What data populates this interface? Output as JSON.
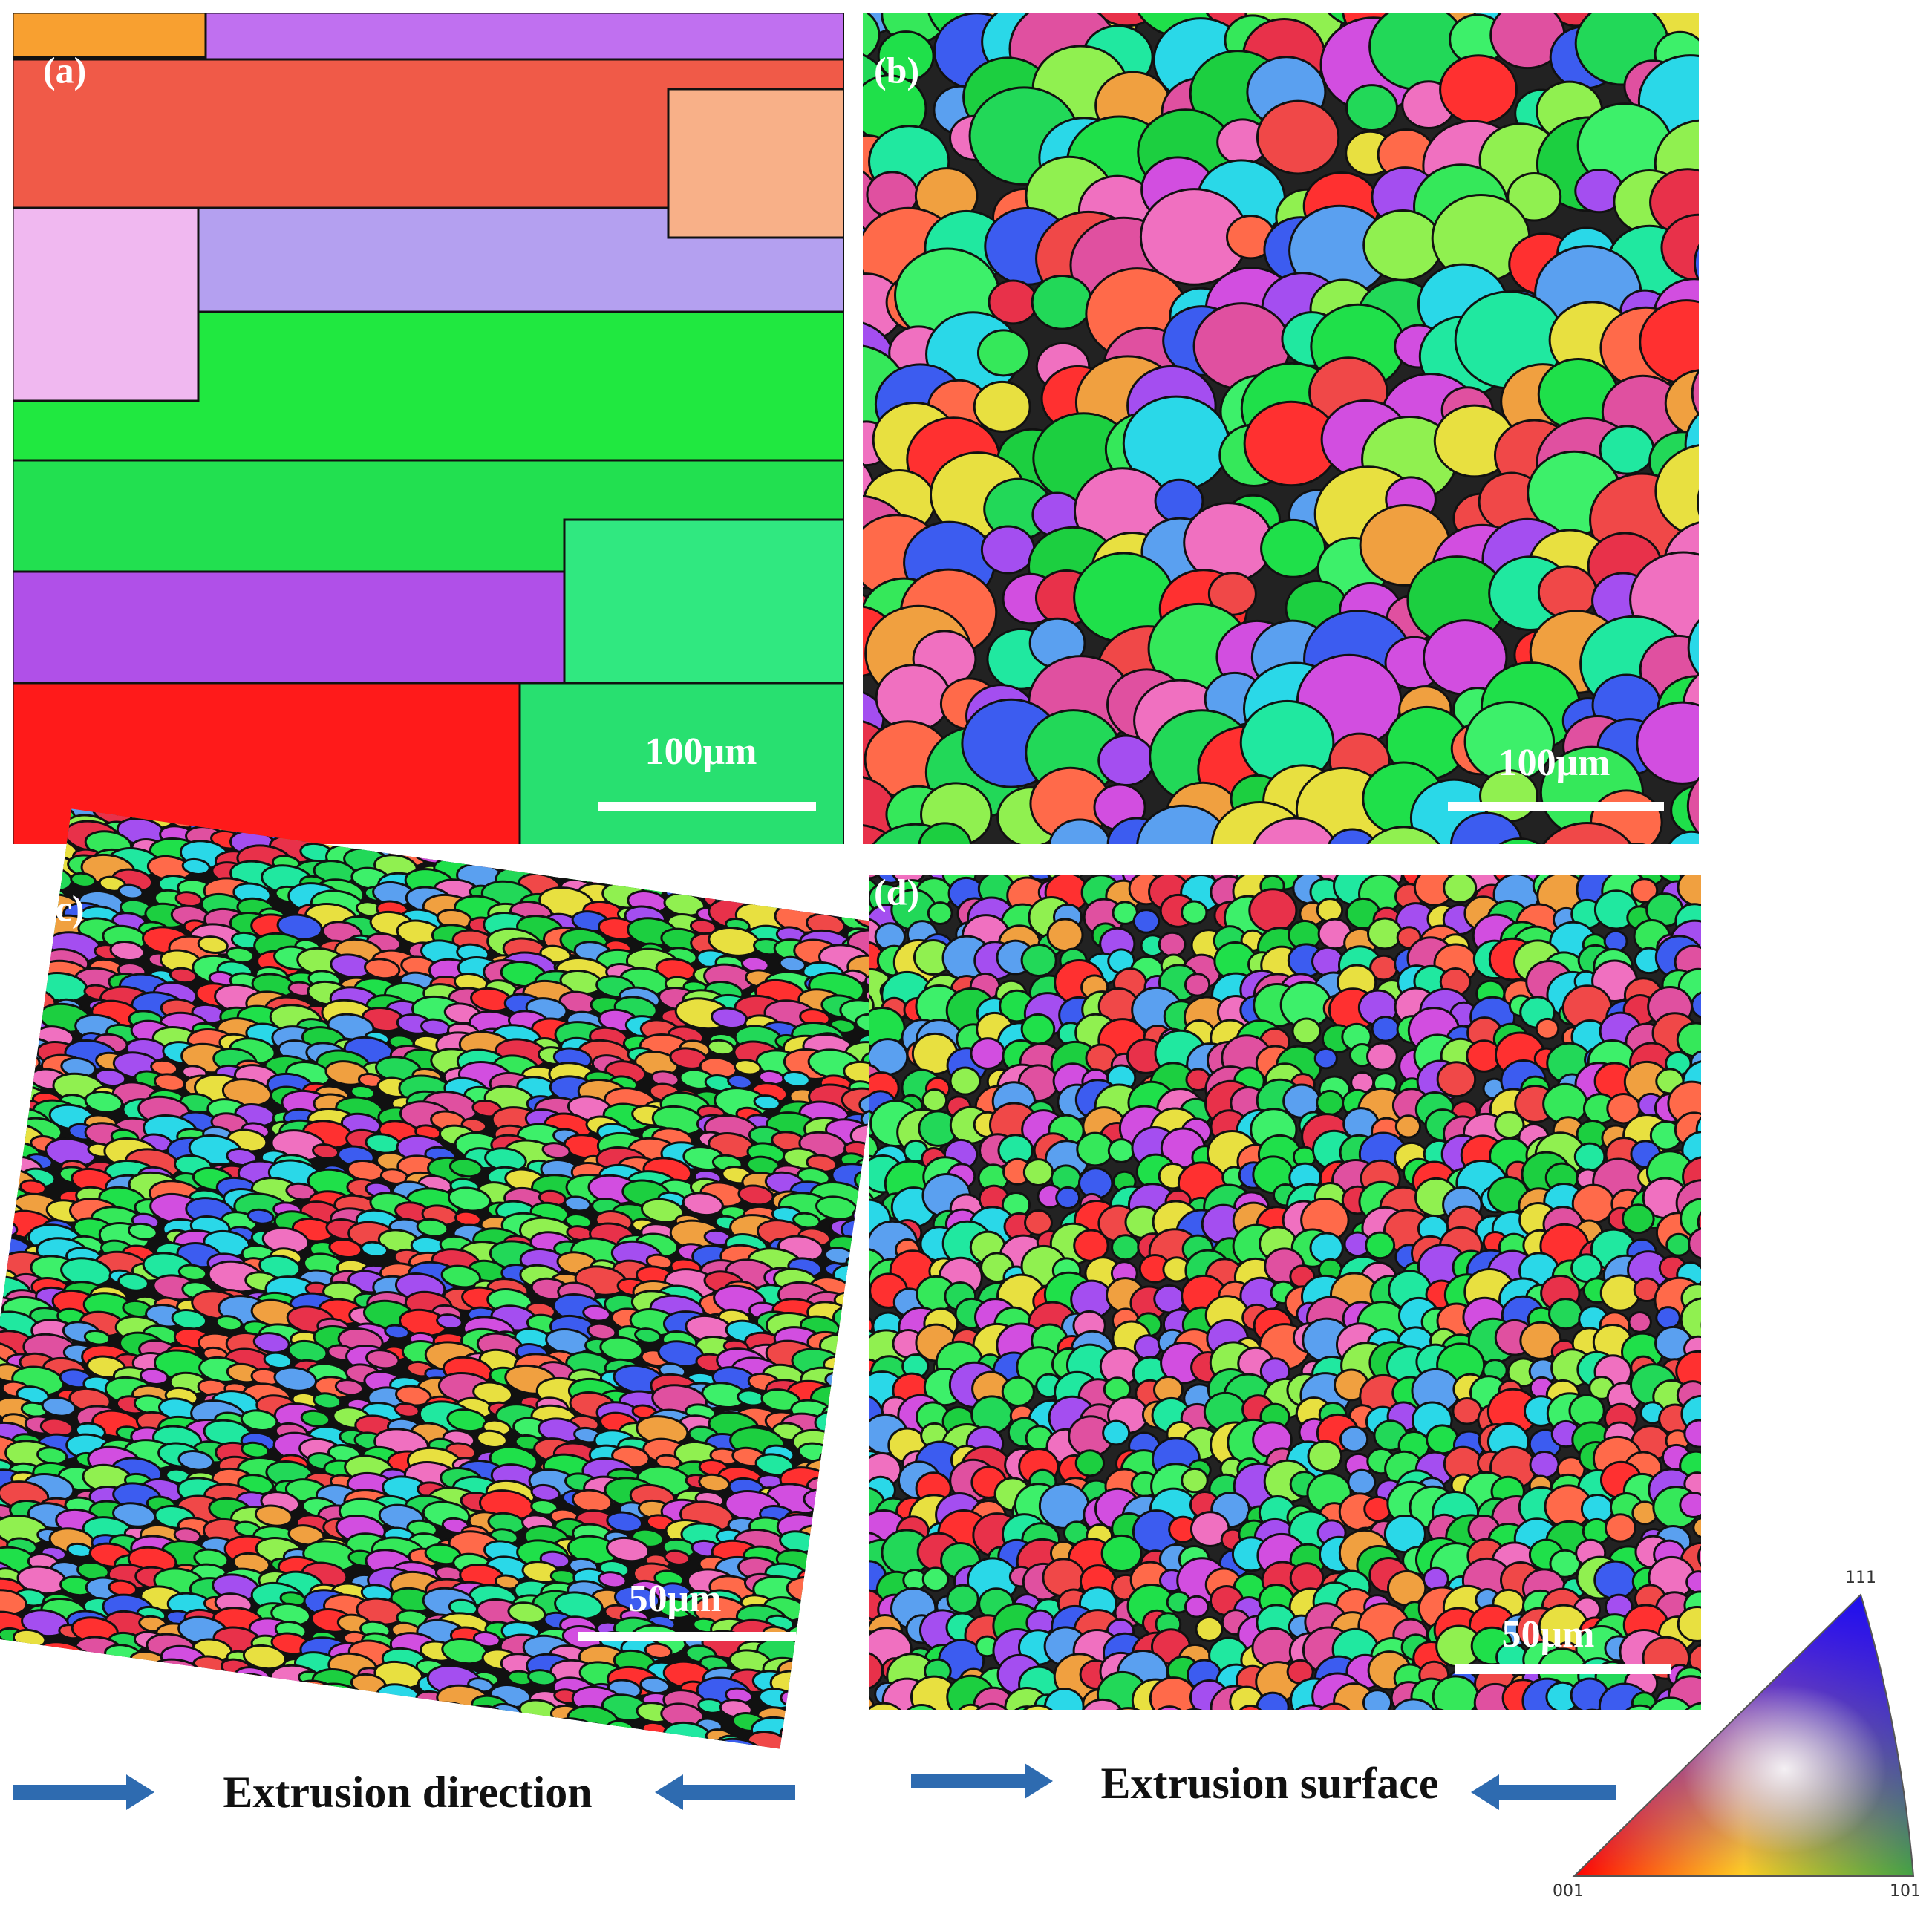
{
  "panels": [
    {
      "label": "(a)",
      "scale_bar": "100μm"
    },
    {
      "label": "(b)",
      "scale_bar": "100μm"
    },
    {
      "label": "(c)",
      "scale_bar": "50μm"
    },
    {
      "label": "(d)",
      "scale_bar": "50μm"
    }
  ],
  "captions": [
    "Extrusion direction",
    "Extrusion surface"
  ],
  "legend": {
    "top": "111",
    "left": "001",
    "right": "101"
  }
}
